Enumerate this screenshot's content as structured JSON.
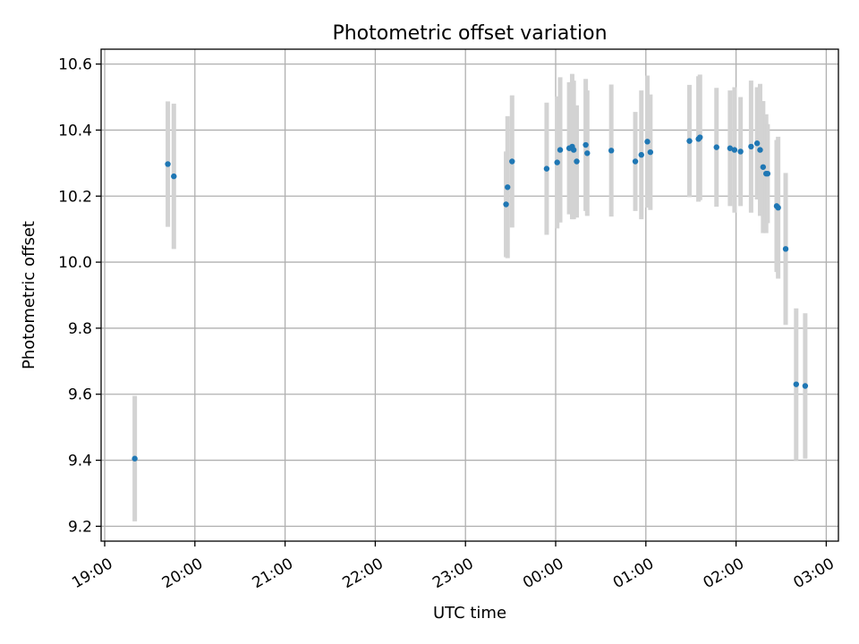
{
  "chart_data": {
    "type": "scatter",
    "title": "Photometric offset variation",
    "xlabel": "UTC time",
    "ylabel": "Photometric offset",
    "x_tick_labels": [
      "19:00",
      "20:00",
      "21:00",
      "22:00",
      "23:00",
      "00:00",
      "01:00",
      "02:00",
      "03:00"
    ],
    "y_tick_labels": [
      "9.2",
      "9.4",
      "9.6",
      "9.8",
      "10.0",
      "10.2",
      "10.4",
      "10.6"
    ],
    "y_ticks": [
      9.2,
      9.4,
      9.6,
      9.8,
      10.0,
      10.2,
      10.4,
      10.6
    ],
    "ylim": [
      9.155,
      10.645
    ],
    "xlim": [
      "19:00",
      "03:00"
    ],
    "grid": true,
    "colors": {
      "point": "#1f77b4",
      "errorbar": "#d3d3d3",
      "grid": "#b0b0b0"
    },
    "points": [
      {
        "x": "19:20",
        "y": 9.405,
        "err": 0.19
      },
      {
        "x": "19:42",
        "y": 10.297,
        "err": 0.19
      },
      {
        "x": "19:46",
        "y": 10.26,
        "err": 0.22
      },
      {
        "x": "23:27",
        "y": 10.175,
        "err": 0.16
      },
      {
        "x": "23:28",
        "y": 10.227,
        "err": 0.215
      },
      {
        "x": "23:31",
        "y": 10.305,
        "err": 0.2
      },
      {
        "x": "23:54",
        "y": 10.283,
        "err": 0.2
      },
      {
        "x": "00:01",
        "y": 10.302,
        "err": 0.2
      },
      {
        "x": "00:03",
        "y": 10.34,
        "err": 0.22
      },
      {
        "x": "00:09",
        "y": 10.345,
        "err": 0.2
      },
      {
        "x": "00:11",
        "y": 10.35,
        "err": 0.22
      },
      {
        "x": "00:12",
        "y": 10.34,
        "err": 0.21
      },
      {
        "x": "00:14",
        "y": 10.305,
        "err": 0.17
      },
      {
        "x": "00:20",
        "y": 10.355,
        "err": 0.2
      },
      {
        "x": "00:21",
        "y": 10.33,
        "err": 0.19
      },
      {
        "x": "00:37",
        "y": 10.338,
        "err": 0.2
      },
      {
        "x": "00:53",
        "y": 10.305,
        "err": 0.15
      },
      {
        "x": "00:57",
        "y": 10.325,
        "err": 0.195
      },
      {
        "x": "01:01",
        "y": 10.365,
        "err": 0.2
      },
      {
        "x": "01:03",
        "y": 10.333,
        "err": 0.175
      },
      {
        "x": "01:29",
        "y": 10.367,
        "err": 0.17
      },
      {
        "x": "01:35",
        "y": 10.373,
        "err": 0.19
      },
      {
        "x": "01:36",
        "y": 10.378,
        "err": 0.19
      },
      {
        "x": "01:47",
        "y": 10.348,
        "err": 0.18
      },
      {
        "x": "01:56",
        "y": 10.345,
        "err": 0.175
      },
      {
        "x": "01:59",
        "y": 10.34,
        "err": 0.19
      },
      {
        "x": "02:03",
        "y": 10.335,
        "err": 0.165
      },
      {
        "x": "02:10",
        "y": 10.35,
        "err": 0.2
      },
      {
        "x": "02:14",
        "y": 10.36,
        "err": 0.17
      },
      {
        "x": "02:16",
        "y": 10.34,
        "err": 0.2
      },
      {
        "x": "02:18",
        "y": 10.288,
        "err": 0.2
      },
      {
        "x": "02:20",
        "y": 10.268,
        "err": 0.18
      },
      {
        "x": "02:21",
        "y": 10.268,
        "err": 0.15
      },
      {
        "x": "02:27",
        "y": 10.17,
        "err": 0.2
      },
      {
        "x": "02:28",
        "y": 10.165,
        "err": 0.215
      },
      {
        "x": "02:33",
        "y": 10.04,
        "err": 0.23
      },
      {
        "x": "02:40",
        "y": 9.63,
        "err": 0.23
      },
      {
        "x": "02:46",
        "y": 9.625,
        "err": 0.22
      }
    ]
  }
}
